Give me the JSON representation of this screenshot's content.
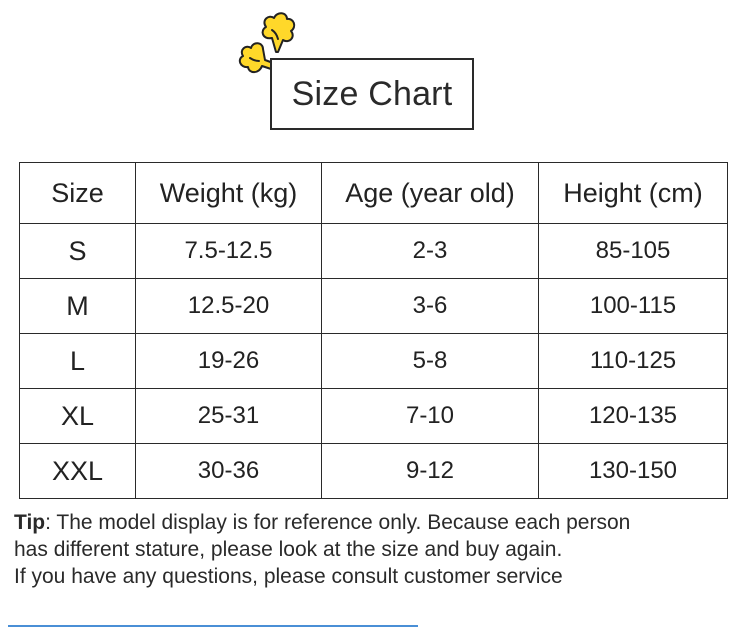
{
  "title": "Size Chart",
  "table": {
    "headers": [
      "Size",
      "Weight (kg)",
      "Age (year old)",
      "Height (cm)"
    ],
    "rows": [
      [
        "S",
        "7.5-12.5",
        "2-3",
        "85-105"
      ],
      [
        "M",
        "12.5-20",
        "3-6",
        "100-115"
      ],
      [
        "L",
        "19-26",
        "5-8",
        "110-125"
      ],
      [
        "XL",
        "25-31",
        "7-10",
        "120-135"
      ],
      [
        "XXL",
        "30-36",
        "9-12",
        "130-150"
      ]
    ]
  },
  "tip": {
    "label": "Tip",
    "line1": ": The model display is for reference only. Because each person",
    "line2": "has different stature, please look at the size and buy again.",
    "line3": "If you have any questions, please consult customer service"
  },
  "colors": {
    "sticker_fill": "#ffd82a",
    "border": "#2a2a2a",
    "divider": "#4a8fd6"
  },
  "icons": {
    "sticker": "popping-burst-sticker-icon"
  }
}
